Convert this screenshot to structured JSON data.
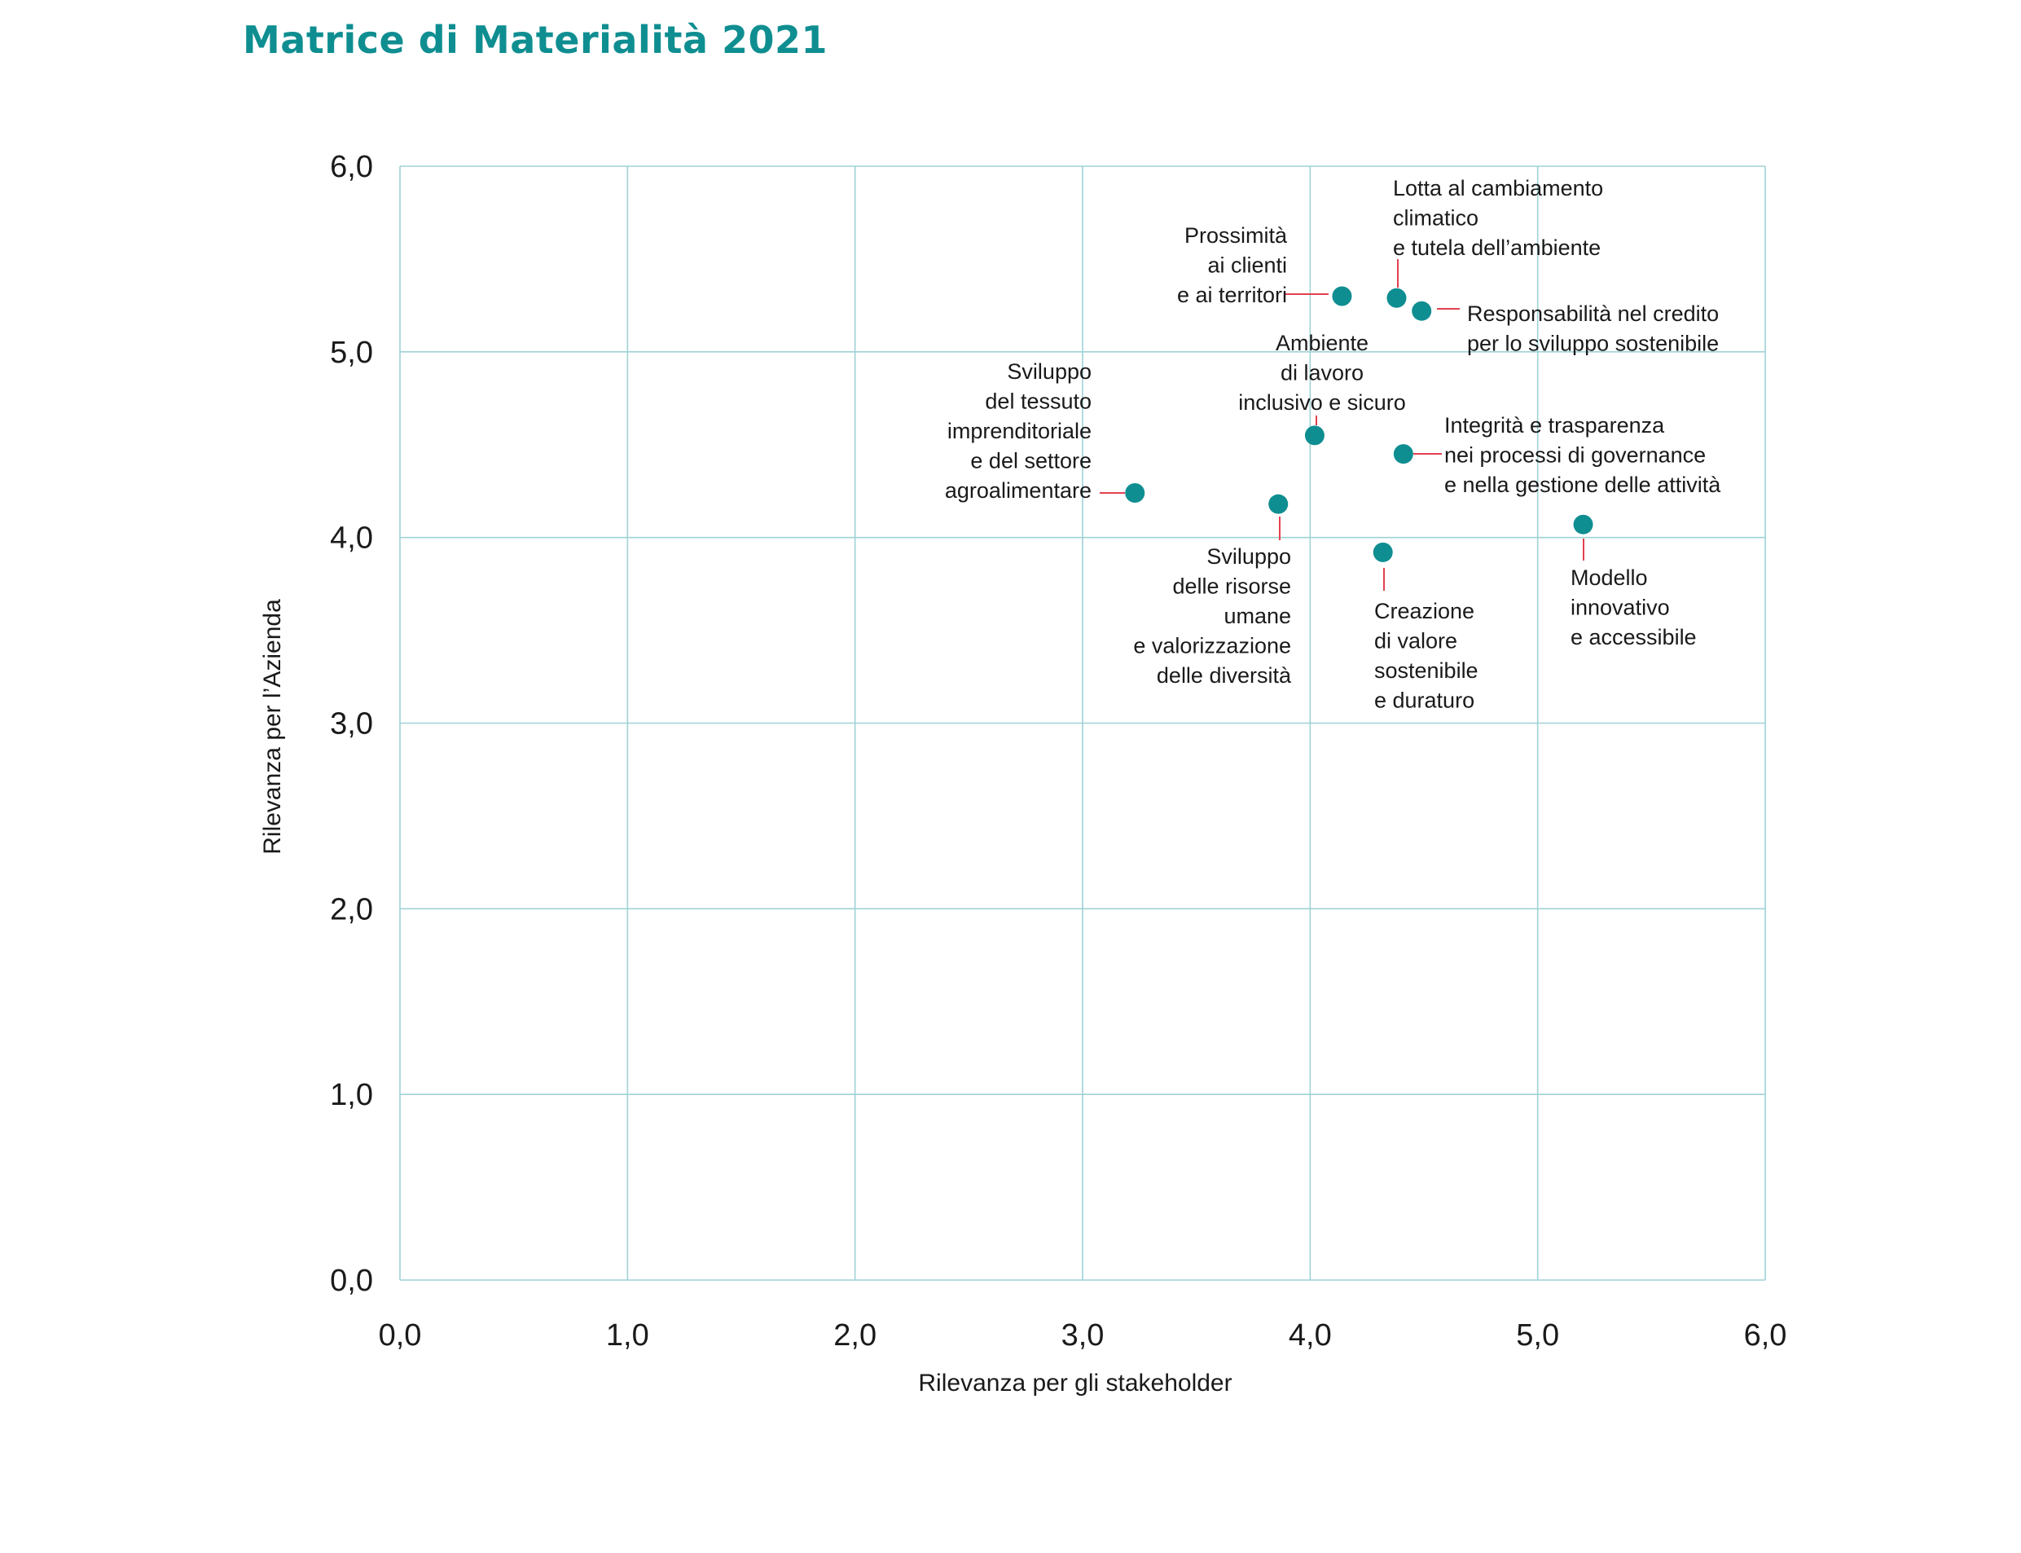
{
  "colors": {
    "title": "#0f8e91",
    "point": "#0f8e91",
    "grid": "#9fd2d6",
    "leader": "#e3404f",
    "text": "#1a1a1a"
  },
  "chart_data": {
    "type": "scatter",
    "title": "Matrice di Materialità 2021",
    "xlabel": "Rilevanza per gli stakeholder",
    "ylabel": "Rilevanza per l’Azienda",
    "xlim": [
      0,
      6
    ],
    "ylim": [
      0,
      6
    ],
    "x_ticks": [
      "0,0",
      "1,0",
      "2,0",
      "3,0",
      "4,0",
      "5,0",
      "6,0"
    ],
    "y_ticks": [
      "0,0",
      "1,0",
      "2,0",
      "3,0",
      "4,0",
      "5,0",
      "6,0"
    ],
    "grid": true,
    "points": [
      {
        "x": 4.14,
        "y": 5.3,
        "label": [
          "Prossimità",
          "ai clienti",
          "e ai territori"
        ]
      },
      {
        "x": 4.38,
        "y": 5.29,
        "label": [
          "Lotta al cambiamento",
          "climatico",
          "e tutela dell’ambiente"
        ]
      },
      {
        "x": 4.49,
        "y": 5.22,
        "label": [
          "Responsabilità nel credito",
          "per lo sviluppo sostenibile"
        ]
      },
      {
        "x": 4.02,
        "y": 4.55,
        "label": [
          "Ambiente",
          "di lavoro",
          "inclusivo e sicuro"
        ]
      },
      {
        "x": 4.41,
        "y": 4.45,
        "label": [
          "Integrità e trasparenza",
          "nei processi di governance",
          "e nella gestione delle attività"
        ]
      },
      {
        "x": 3.23,
        "y": 4.24,
        "label": [
          "Sviluppo",
          "del tessuto",
          "imprenditoriale",
          "e del settore",
          "agroalimentare"
        ]
      },
      {
        "x": 3.86,
        "y": 4.18,
        "label": [
          "Sviluppo",
          "delle risorse",
          "umane",
          "e valorizzazione",
          "delle diversità"
        ]
      },
      {
        "x": 5.2,
        "y": 4.07,
        "label": [
          "Modello",
          "innovativo",
          "e accessibile"
        ]
      },
      {
        "x": 4.32,
        "y": 3.92,
        "label": [
          "Creazione",
          "di valore",
          "sostenibile",
          "e duraturo"
        ]
      }
    ]
  }
}
